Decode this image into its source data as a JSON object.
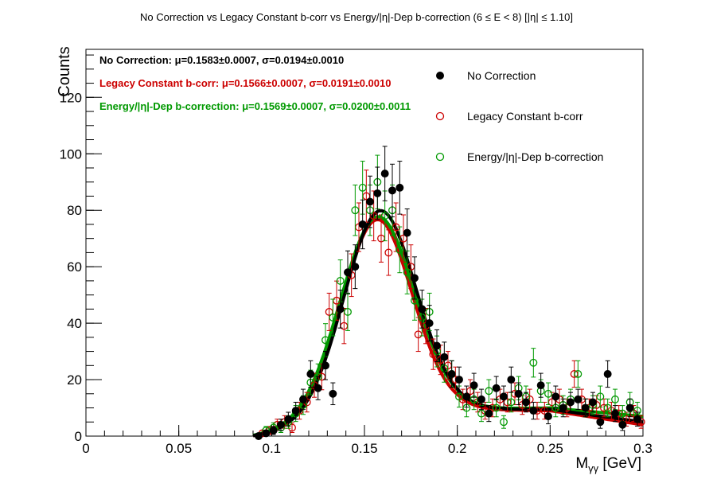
{
  "chart_data": {
    "type": "scatter",
    "title": "No Correction vs Legacy Constant b-corr vs Energy/|η|-Dep b-correction   (6 ≤ E < 8)   [|η| ≤ 1.10]",
    "xlabel": "M",
    "xlabel_sub": "γγ",
    "xlabel_unit": " [GeV]",
    "ylabel": "Counts",
    "xlim": [
      0,
      0.3
    ],
    "ylim": [
      0,
      137
    ],
    "x_ticks": [
      0,
      0.05,
      0.1,
      0.15,
      0.2,
      0.25,
      0.3
    ],
    "x_tick_labels": [
      "0",
      "0.05",
      "0.1",
      "0.15",
      "0.2",
      "0.25",
      "0.3"
    ],
    "y_ticks": [
      0,
      20,
      40,
      60,
      80,
      100,
      120
    ],
    "y_tick_labels": [
      "0",
      "20",
      "40",
      "60",
      "80",
      "100",
      "120"
    ],
    "grid": false,
    "legend_position": "top-right",
    "colors": {
      "no_corr": "#000000",
      "legacy": "#cc0000",
      "energy": "#009900"
    },
    "fit_labels": [
      {
        "name": "No Correction:",
        "mu": "0.1583±0.0007",
        "sigma": "0.0194±0.0010",
        "color": "#000000"
      },
      {
        "name": "Legacy Constant b-corr:",
        "mu": "0.1566±0.0007",
        "sigma": "0.0191±0.0010",
        "color": "#cc0000"
      },
      {
        "name": "Energy/|η|-Dep b-correction:",
        "mu": "0.1569±0.0007",
        "sigma": "0.0200±0.0011",
        "color": "#009900"
      }
    ],
    "series": [
      {
        "name": "No Correction",
        "marker": "filled",
        "color": "#000000",
        "fit": {
          "A": 73,
          "mu": 0.1583,
          "sigma": 0.0194,
          "bkg": [
            [
              0.09,
              0
            ],
            [
              0.12,
              3
            ],
            [
              0.16,
              7
            ],
            [
              0.2,
              9.5
            ],
            [
              0.25,
              9.5
            ],
            [
              0.3,
              5
            ]
          ]
        },
        "points": [
          [
            0.093,
            0
          ],
          [
            0.097,
            1
          ],
          [
            0.101,
            2
          ],
          [
            0.105,
            4
          ],
          [
            0.109,
            6
          ],
          [
            0.113,
            9
          ],
          [
            0.117,
            13
          ],
          [
            0.121,
            22
          ],
          [
            0.125,
            17
          ],
          [
            0.129,
            25
          ],
          [
            0.133,
            15
          ],
          [
            0.137,
            45
          ],
          [
            0.141,
            58
          ],
          [
            0.145,
            60
          ],
          [
            0.149,
            75
          ],
          [
            0.153,
            83
          ],
          [
            0.157,
            86
          ],
          [
            0.161,
            93
          ],
          [
            0.165,
            87
          ],
          [
            0.169,
            88
          ],
          [
            0.173,
            72
          ],
          [
            0.177,
            56
          ],
          [
            0.181,
            45
          ],
          [
            0.185,
            40
          ],
          [
            0.189,
            32
          ],
          [
            0.193,
            28
          ],
          [
            0.197,
            22
          ],
          [
            0.201,
            20
          ],
          [
            0.205,
            14
          ],
          [
            0.209,
            18
          ],
          [
            0.213,
            13
          ],
          [
            0.217,
            8
          ],
          [
            0.221,
            17
          ],
          [
            0.225,
            14
          ],
          [
            0.229,
            20
          ],
          [
            0.233,
            15
          ],
          [
            0.237,
            12
          ],
          [
            0.241,
            9
          ],
          [
            0.245,
            18
          ],
          [
            0.249,
            7
          ],
          [
            0.253,
            14
          ],
          [
            0.257,
            10
          ],
          [
            0.261,
            12
          ],
          [
            0.265,
            13
          ],
          [
            0.269,
            10
          ],
          [
            0.273,
            12
          ],
          [
            0.277,
            5
          ],
          [
            0.281,
            22
          ],
          [
            0.285,
            8
          ],
          [
            0.289,
            4
          ],
          [
            0.293,
            10
          ],
          [
            0.297,
            6
          ]
        ]
      },
      {
        "name": "Legacy Constant b-corr",
        "marker": "open",
        "color": "#cc0000",
        "fit": {
          "A": 70,
          "mu": 0.1566,
          "sigma": 0.0191,
          "bkg": [
            [
              0.09,
              0
            ],
            [
              0.12,
              3
            ],
            [
              0.16,
              7
            ],
            [
              0.2,
              9.5
            ],
            [
              0.25,
              9
            ],
            [
              0.3,
              4
            ]
          ]
        },
        "points": [
          [
            0.095,
            1
          ],
          [
            0.099,
            2
          ],
          [
            0.103,
            4
          ],
          [
            0.107,
            5
          ],
          [
            0.111,
            3
          ],
          [
            0.115,
            9
          ],
          [
            0.119,
            12
          ],
          [
            0.123,
            18
          ],
          [
            0.127,
            21
          ],
          [
            0.131,
            44
          ],
          [
            0.135,
            48
          ],
          [
            0.139,
            39
          ],
          [
            0.143,
            57
          ],
          [
            0.147,
            74
          ],
          [
            0.151,
            85
          ],
          [
            0.155,
            78
          ],
          [
            0.159,
            70
          ],
          [
            0.163,
            65
          ],
          [
            0.167,
            74
          ],
          [
            0.171,
            70
          ],
          [
            0.175,
            60
          ],
          [
            0.179,
            36
          ],
          [
            0.183,
            39
          ],
          [
            0.187,
            29
          ],
          [
            0.191,
            27
          ],
          [
            0.195,
            25
          ],
          [
            0.199,
            20
          ],
          [
            0.203,
            13
          ],
          [
            0.207,
            16
          ],
          [
            0.211,
            12
          ],
          [
            0.215,
            9
          ],
          [
            0.219,
            10
          ],
          [
            0.223,
            13
          ],
          [
            0.227,
            12
          ],
          [
            0.231,
            15
          ],
          [
            0.235,
            11
          ],
          [
            0.239,
            13
          ],
          [
            0.243,
            9
          ],
          [
            0.247,
            9
          ],
          [
            0.251,
            12
          ],
          [
            0.255,
            13
          ],
          [
            0.259,
            10
          ],
          [
            0.263,
            22
          ],
          [
            0.267,
            13
          ],
          [
            0.271,
            10
          ],
          [
            0.275,
            11
          ],
          [
            0.279,
            10
          ],
          [
            0.283,
            9
          ],
          [
            0.287,
            8
          ],
          [
            0.291,
            6
          ],
          [
            0.295,
            8
          ],
          [
            0.299,
            5
          ]
        ]
      },
      {
        "name": "Energy/|η|-Dep b-correction",
        "marker": "open",
        "color": "#009900",
        "fit": {
          "A": 71,
          "mu": 0.1569,
          "sigma": 0.02,
          "bkg": [
            [
              0.09,
              0
            ],
            [
              0.12,
              3
            ],
            [
              0.16,
              7
            ],
            [
              0.2,
              9.5
            ],
            [
              0.25,
              10
            ],
            [
              0.3,
              7
            ]
          ]
        },
        "points": [
          [
            0.097,
            2
          ],
          [
            0.101,
            3
          ],
          [
            0.105,
            3
          ],
          [
            0.109,
            5
          ],
          [
            0.113,
            8
          ],
          [
            0.117,
            11
          ],
          [
            0.121,
            19
          ],
          [
            0.125,
            21
          ],
          [
            0.129,
            34
          ],
          [
            0.133,
            42
          ],
          [
            0.137,
            55
          ],
          [
            0.141,
            44
          ],
          [
            0.145,
            80
          ],
          [
            0.149,
            88
          ],
          [
            0.153,
            80
          ],
          [
            0.157,
            90
          ],
          [
            0.161,
            78
          ],
          [
            0.165,
            80
          ],
          [
            0.169,
            66
          ],
          [
            0.173,
            58
          ],
          [
            0.177,
            48
          ],
          [
            0.181,
            42
          ],
          [
            0.185,
            44
          ],
          [
            0.189,
            30
          ],
          [
            0.193,
            24
          ],
          [
            0.197,
            22
          ],
          [
            0.201,
            14
          ],
          [
            0.205,
            10
          ],
          [
            0.209,
            13
          ],
          [
            0.213,
            8
          ],
          [
            0.217,
            16
          ],
          [
            0.221,
            10
          ],
          [
            0.225,
            5
          ],
          [
            0.229,
            12
          ],
          [
            0.233,
            17
          ],
          [
            0.237,
            14
          ],
          [
            0.241,
            26
          ],
          [
            0.245,
            16
          ],
          [
            0.249,
            15
          ],
          [
            0.253,
            10
          ],
          [
            0.257,
            11
          ],
          [
            0.261,
            13
          ],
          [
            0.265,
            22
          ],
          [
            0.269,
            10
          ],
          [
            0.273,
            11
          ],
          [
            0.277,
            14
          ],
          [
            0.281,
            10
          ],
          [
            0.285,
            13
          ],
          [
            0.289,
            8
          ],
          [
            0.293,
            12
          ],
          [
            0.297,
            9
          ]
        ]
      }
    ]
  }
}
